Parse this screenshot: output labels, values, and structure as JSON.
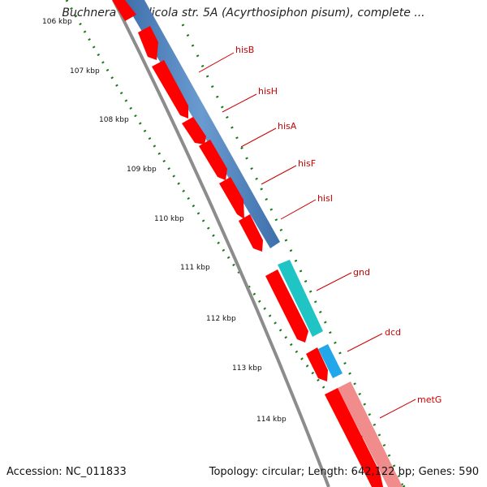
{
  "title": "Buchnera aphidicola str. 5A (Acyrthosiphon pisum), complete ...",
  "footer": {
    "accession": "Accession: NC_011833",
    "summary": "Topology: circular; Length: 642,122 bp; Genes: 590"
  },
  "colors": {
    "cds": "#ff0000",
    "label": "#cc0000",
    "backbone": "#8c8c8c",
    "tick": "#1a7a1a",
    "his_operon": "#4a7fbd",
    "gnd": "#20c4c4",
    "dcd": "#22a8ea",
    "metG": "#f08c8c"
  },
  "ticks": [
    {
      "label": "106 kbp"
    },
    {
      "label": "107 kbp"
    },
    {
      "label": "108 kbp"
    },
    {
      "label": "109 kbp"
    },
    {
      "label": "110 kbp"
    },
    {
      "label": "111 kbp"
    },
    {
      "label": "112 kbp"
    },
    {
      "label": "113 kbp"
    },
    {
      "label": "114 kbp"
    }
  ],
  "genes": [
    {
      "name": "hisB"
    },
    {
      "name": "hisH"
    },
    {
      "name": "hisA"
    },
    {
      "name": "hisF"
    },
    {
      "name": "hisI"
    },
    {
      "name": "gnd"
    },
    {
      "name": "dcd"
    },
    {
      "name": "metG"
    }
  ]
}
